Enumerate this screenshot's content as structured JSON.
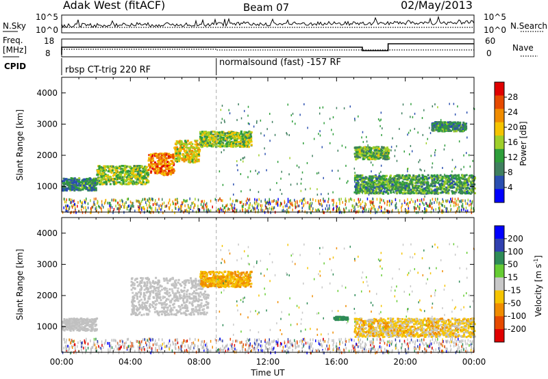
{
  "header": {
    "station": "Adak West (fitACF)",
    "beam": "Beam 07",
    "date": "02/May/2013"
  },
  "nsky_panel": {
    "left_label": "N.Sky",
    "right_label": "N.Search",
    "left_ticks": [
      "10^5",
      "10^0"
    ],
    "right_ticks": [
      "10^5",
      "10^0"
    ]
  },
  "freq_panel": {
    "left_label_1": "Freq.",
    "left_label_2": "[MHz]",
    "right_label": "Nave",
    "left_ticks": [
      "18",
      "8"
    ],
    "right_ticks": [
      "60",
      "0"
    ]
  },
  "cpid": {
    "label": "CPID",
    "segments": [
      {
        "name": "rbsp CT-trig 220 RF",
        "start_hour": 0
      },
      {
        "name": "normalsound (fast) -157 RF",
        "start_hour": 9
      }
    ]
  },
  "colors": {
    "power_scale": [
      "#0000ff",
      "#2a4fb0",
      "#3f7f5f",
      "#2e9e3a",
      "#9fcf2a",
      "#f5c400",
      "#f08c00",
      "#e64a00",
      "#e00000"
    ],
    "velocity_scale": [
      "#0000ff",
      "#3040b0",
      "#2e8b57",
      "#66cc33",
      "#c8c8c8",
      "#f5c400",
      "#f08c00",
      "#e64a00",
      "#e00000"
    ],
    "ground_scatter": "#c0c0c0"
  },
  "chart_data": [
    {
      "type": "heatmap",
      "title": "Power",
      "xlabel": "",
      "ylabel": "Slant Range [km]",
      "xlim": [
        0,
        24
      ],
      "ylim": [
        180,
        4500
      ],
      "y_ticks": [
        1000,
        2000,
        3000,
        4000
      ],
      "x_ticks": [
        0,
        4,
        8,
        12,
        16,
        20,
        24
      ],
      "colorbar": {
        "label": "Power [dB]",
        "ticks": [
          4,
          8,
          12,
          16,
          20,
          24,
          28
        ],
        "range": [
          0,
          30
        ]
      },
      "echo_regions": [
        {
          "t0": 0.0,
          "t1": 2.0,
          "r0": 900,
          "r1": 1300,
          "power": 8
        },
        {
          "t0": 2.0,
          "t1": 5.0,
          "r0": 1100,
          "r1": 1700,
          "power": 14
        },
        {
          "t0": 5.0,
          "t1": 6.5,
          "r0": 1400,
          "r1": 2100,
          "power": 24
        },
        {
          "t0": 6.5,
          "t1": 8.0,
          "r0": 1800,
          "r1": 2500,
          "power": 18
        },
        {
          "t0": 8.0,
          "t1": 11.0,
          "r0": 2300,
          "r1": 2800,
          "power": 14
        },
        {
          "t0": 17.0,
          "t1": 19.0,
          "r0": 1900,
          "r1": 2300,
          "power": 12
        },
        {
          "t0": 17.0,
          "t1": 24.0,
          "r0": 800,
          "r1": 1400,
          "power": 10
        },
        {
          "t0": 21.5,
          "t1": 23.5,
          "r0": 2800,
          "r1": 3100,
          "power": 8
        }
      ]
    },
    {
      "type": "heatmap",
      "title": "Velocity",
      "xlabel": "Time UT",
      "ylabel": "Slant Range [km]",
      "xlim": [
        0,
        24
      ],
      "ylim": [
        180,
        4500
      ],
      "y_ticks": [
        1000,
        2000,
        3000,
        4000
      ],
      "x_ticks": [
        0,
        4,
        8,
        12,
        16,
        20,
        24
      ],
      "colorbar": {
        "label": "Velocity [m s^-1]",
        "ticks": [
          200,
          100,
          50,
          15,
          -15,
          -50,
          -100,
          -200
        ],
        "range": [
          -250,
          250
        ]
      },
      "echo_regions": [
        {
          "t0": 0.0,
          "t1": 2.0,
          "r0": 900,
          "r1": 1300,
          "velocity": 0
        },
        {
          "t0": 4.0,
          "t1": 8.5,
          "r0": 1400,
          "r1": 2600,
          "velocity": 0
        },
        {
          "t0": 8.0,
          "t1": 11.0,
          "r0": 2300,
          "r1": 2800,
          "velocity": -30
        },
        {
          "t0": 15.8,
          "t1": 16.6,
          "r0": 1250,
          "r1": 1350,
          "velocity": 60
        },
        {
          "t0": 17.0,
          "t1": 24.0,
          "r0": 700,
          "r1": 1300,
          "velocity": -20
        }
      ]
    }
  ],
  "x_tick_labels": [
    "00:00",
    "04:00",
    "08:00",
    "12:00",
    "16:00",
    "20:00",
    "00:00"
  ],
  "y_tick_labels": [
    "1000",
    "2000",
    "3000",
    "4000"
  ],
  "xlabel": "Time UT",
  "ylabel": "Slant Range [km]",
  "power_colorbar_label": "Power [dB]",
  "power_ticks": [
    "28",
    "24",
    "20",
    "16",
    "12",
    "8",
    "4"
  ],
  "velocity_colorbar_label": "Velocity [m s",
  "velocity_colorbar_sup": "-1",
  "velocity_colorbar_close": "]",
  "velocity_ticks": [
    "200",
    "100",
    "50",
    "15",
    "-15",
    "-50",
    "-100",
    "-200"
  ]
}
